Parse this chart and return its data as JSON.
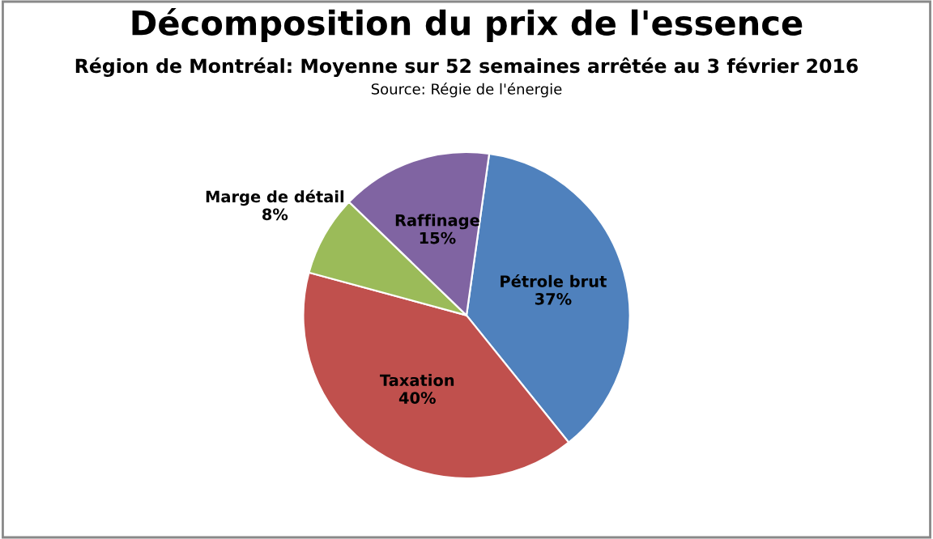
{
  "chart_data": {
    "type": "pie",
    "title": "Décomposition du prix de l'essence",
    "subtitle": "Région de Montréal: Moyenne sur 52 semaines arrêtée au 3 février 2016",
    "annotations": [
      "Source: Régie de l'énergie"
    ],
    "categories": [
      "Pétrole brut",
      "Taxation",
      "Marge de détail",
      "Raffinage"
    ],
    "values": [
      37,
      40,
      8,
      15
    ],
    "value_labels": [
      "37%",
      "40%",
      "8%",
      "15%"
    ],
    "colors": [
      "#4f81bd",
      "#c0504d",
      "#9bbb59",
      "#8064a2"
    ],
    "legend": false
  }
}
